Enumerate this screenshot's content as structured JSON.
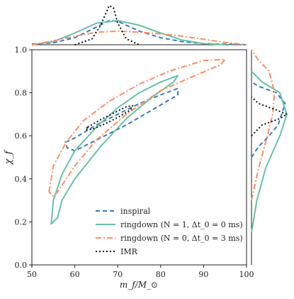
{
  "chart_data": {
    "type": "contour",
    "title": "",
    "xlabel": "m_f/M_⊙",
    "ylabel": "χ_f",
    "xlim": [
      50,
      100
    ],
    "ylim": [
      0.0,
      1.0
    ],
    "xticks": [
      "50",
      "60",
      "70",
      "80",
      "90",
      "100"
    ],
    "yticks": [
      "0.0",
      "0.2",
      "0.4",
      "0.6",
      "0.8",
      "1.0"
    ],
    "grid": false,
    "legend_position": "lower-center",
    "series": [
      {
        "name": "inspiral",
        "color": "#3b7bbf",
        "dash": "dashed",
        "contour": [
          [
            57.8,
            0.57
          ],
          [
            60,
            0.59
          ],
          [
            65,
            0.65
          ],
          [
            70,
            0.7
          ],
          [
            75,
            0.75
          ],
          [
            80,
            0.79
          ],
          [
            84,
            0.82
          ],
          [
            84,
            0.79
          ],
          [
            78,
            0.72
          ],
          [
            72,
            0.65
          ],
          [
            66,
            0.59
          ],
          [
            62,
            0.55
          ],
          [
            60,
            0.53
          ],
          [
            58.2,
            0.545
          ],
          [
            57.8,
            0.57
          ]
        ],
        "marginal_x": [
          [
            50,
            0.02
          ],
          [
            55,
            0.05
          ],
          [
            60,
            0.18
          ],
          [
            65,
            0.45
          ],
          [
            68,
            0.62
          ],
          [
            70,
            0.6
          ],
          [
            75,
            0.35
          ],
          [
            80,
            0.18
          ],
          [
            85,
            0.08
          ],
          [
            90,
            0.03
          ],
          [
            100,
            0.0
          ]
        ],
        "marginal_y": [
          [
            0.5,
            0.0
          ],
          [
            0.55,
            0.2
          ],
          [
            0.6,
            0.5
          ],
          [
            0.65,
            0.75
          ],
          [
            0.7,
            0.85
          ],
          [
            0.75,
            0.95
          ],
          [
            0.8,
            0.7
          ],
          [
            0.83,
            0.2
          ],
          [
            0.85,
            0.0
          ]
        ]
      },
      {
        "name": "ringdown (N = 1, Δt_0 = 0 ms)",
        "color": "#66c2a5",
        "dash": "solid",
        "contour": [
          [
            54.5,
            0.19
          ],
          [
            55,
            0.3
          ],
          [
            57,
            0.42
          ],
          [
            60,
            0.53
          ],
          [
            65,
            0.64
          ],
          [
            70,
            0.73
          ],
          [
            75,
            0.8
          ],
          [
            80,
            0.85
          ],
          [
            84,
            0.88
          ],
          [
            83,
            0.85
          ],
          [
            78,
            0.78
          ],
          [
            72,
            0.68
          ],
          [
            66,
            0.55
          ],
          [
            60,
            0.4
          ],
          [
            57,
            0.3
          ],
          [
            56,
            0.22
          ],
          [
            54.5,
            0.19
          ]
        ],
        "marginal_x": [
          [
            50,
            0.0
          ],
          [
            55,
            0.08
          ],
          [
            60,
            0.3
          ],
          [
            65,
            0.55
          ],
          [
            70,
            0.62
          ],
          [
            75,
            0.5
          ],
          [
            80,
            0.3
          ],
          [
            85,
            0.12
          ],
          [
            90,
            0.03
          ],
          [
            95,
            0.0
          ]
        ],
        "marginal_y": [
          [
            0.15,
            0.0
          ],
          [
            0.3,
            0.15
          ],
          [
            0.45,
            0.4
          ],
          [
            0.6,
            0.8
          ],
          [
            0.7,
            1.0
          ],
          [
            0.8,
            0.8
          ],
          [
            0.85,
            0.3
          ],
          [
            0.9,
            0.0
          ]
        ]
      },
      {
        "name": "ringdown (N = 0, Δt_0 = 3 ms)",
        "color": "#fc8d62",
        "dash": "dashdot",
        "contour": [
          [
            54,
            0.34
          ],
          [
            55,
            0.46
          ],
          [
            58,
            0.57
          ],
          [
            62,
            0.67
          ],
          [
            68,
            0.76
          ],
          [
            75,
            0.84
          ],
          [
            82,
            0.9
          ],
          [
            90,
            0.95
          ],
          [
            95,
            0.955
          ],
          [
            94,
            0.93
          ],
          [
            88,
            0.88
          ],
          [
            80,
            0.81
          ],
          [
            72,
            0.7
          ],
          [
            65,
            0.58
          ],
          [
            60,
            0.46
          ],
          [
            56,
            0.34
          ],
          [
            55,
            0.32
          ],
          [
            54,
            0.34
          ]
        ],
        "marginal_x": [
          [
            50,
            0.0
          ],
          [
            55,
            0.1
          ],
          [
            60,
            0.22
          ],
          [
            65,
            0.32
          ],
          [
            70,
            0.35
          ],
          [
            75,
            0.32
          ],
          [
            80,
            0.28
          ],
          [
            85,
            0.22
          ],
          [
            90,
            0.14
          ],
          [
            95,
            0.06
          ],
          [
            100,
            0.0
          ]
        ],
        "marginal_y": [
          [
            0.3,
            0.0
          ],
          [
            0.45,
            0.2
          ],
          [
            0.6,
            0.45
          ],
          [
            0.7,
            0.6
          ],
          [
            0.8,
            0.65
          ],
          [
            0.9,
            0.5
          ],
          [
            0.95,
            0.2
          ],
          [
            1.0,
            0.0
          ]
        ]
      },
      {
        "name": "IMR",
        "color": "#111111",
        "dash": "dotted",
        "contour": [
          [
            63,
            0.64
          ],
          [
            66,
            0.675
          ],
          [
            69,
            0.705
          ],
          [
            72,
            0.735
          ],
          [
            73.5,
            0.74
          ],
          [
            73,
            0.72
          ],
          [
            70,
            0.685
          ],
          [
            67,
            0.655
          ],
          [
            64,
            0.63
          ],
          [
            62.5,
            0.63
          ],
          [
            63,
            0.64
          ]
        ],
        "marginal_x": [
          [
            60,
            0.0
          ],
          [
            64,
            0.15
          ],
          [
            66,
            0.5
          ],
          [
            68,
            1.0
          ],
          [
            69,
            0.95
          ],
          [
            70,
            0.55
          ],
          [
            72,
            0.15
          ],
          [
            75,
            0.0
          ]
        ],
        "marginal_y": [
          [
            0.6,
            0.0
          ],
          [
            0.65,
            0.3
          ],
          [
            0.68,
            0.8
          ],
          [
            0.7,
            1.0
          ],
          [
            0.72,
            0.7
          ],
          [
            0.75,
            0.2
          ],
          [
            0.78,
            0.0
          ]
        ]
      }
    ]
  }
}
